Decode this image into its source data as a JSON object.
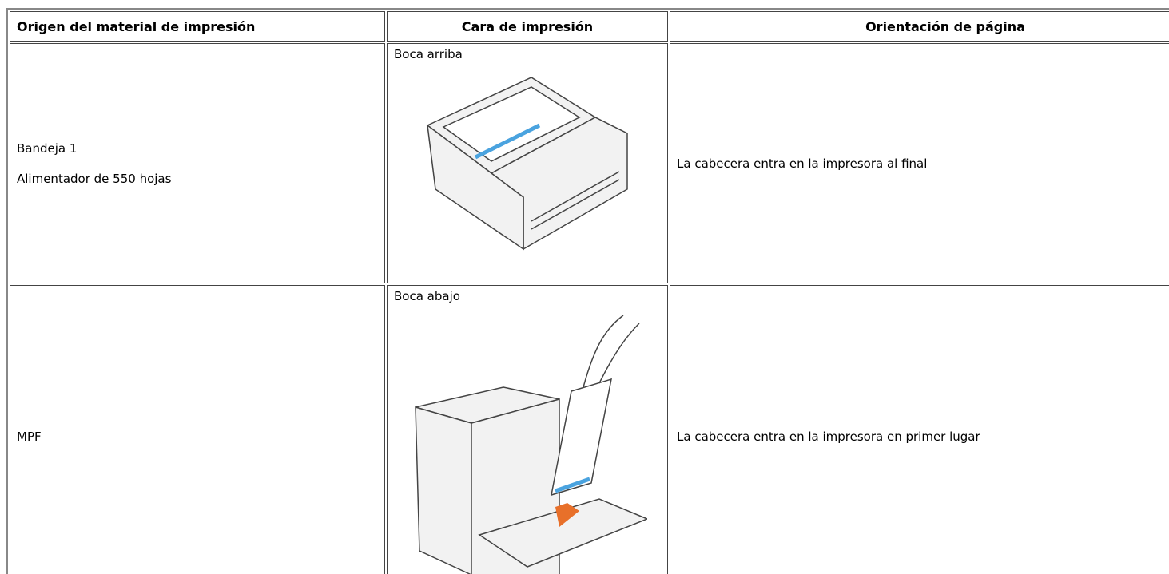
{
  "table": {
    "header": [
      "Origen del material de impresión",
      "Cara de impresión",
      "Orientación de página"
    ],
    "rows": [
      {
        "source": [
          "Bandeja 1",
          "Alimentador de 550 hojas"
        ],
        "face": "Boca arriba",
        "orientation": "La cabecera entra en la impresora al final"
      },
      {
        "source": [
          "MPF"
        ],
        "face": "Boca abajo",
        "orientation": "La cabecera entra en la impresora en primer lugar"
      }
    ]
  }
}
